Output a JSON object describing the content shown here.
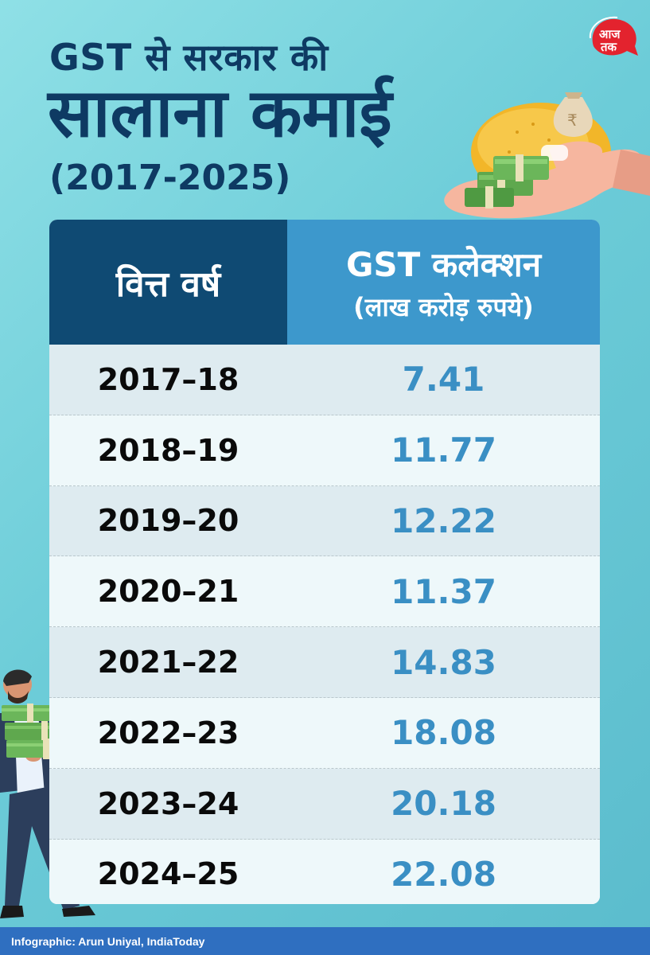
{
  "logo": {
    "text": "आज तक",
    "color": "#e3232e"
  },
  "title": {
    "line1": "GST से सरकार की",
    "line2": "सालाना कमाई",
    "line3": "(2017-2025)"
  },
  "table": {
    "header_left": "वित्त वर्ष",
    "header_right_line1": "GST कलेक्शन",
    "header_right_line2": "(लाख करोड़ रुपये)"
  },
  "chart_data": {
    "type": "table",
    "columns": [
      "वित्त वर्ष",
      "GST कलेक्शन (लाख करोड़ रुपये)"
    ],
    "rows": [
      {
        "year": "2017–18",
        "value": "7.41"
      },
      {
        "year": "2018–19",
        "value": "11.77"
      },
      {
        "year": "2019–20",
        "value": "12.22"
      },
      {
        "year": "2020–21",
        "value": "11.37"
      },
      {
        "year": "2021–22",
        "value": "14.83"
      },
      {
        "year": "2022–23",
        "value": "18.08"
      },
      {
        "year": "2023–24",
        "value": "20.18"
      },
      {
        "year": "2024–25",
        "value": "22.08"
      }
    ]
  },
  "footer": {
    "credit": "Infographic: Arun Uniyal, IndiaToday"
  },
  "colors": {
    "header_dark": "#0f4a73",
    "header_light": "#3d98cc",
    "value_blue": "#3a8fc4",
    "title_navy": "#0e3a63"
  }
}
